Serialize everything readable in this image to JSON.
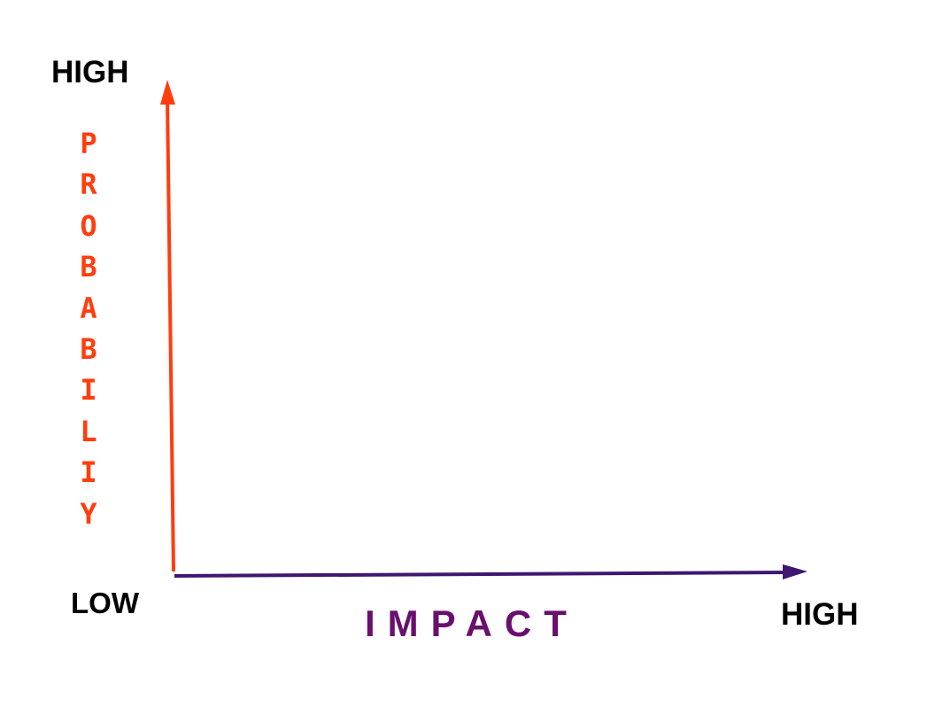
{
  "colors": {
    "probability_axis": "#ff3d0d",
    "impact_axis": "#3f1670",
    "impact_title": "#6a0f6e",
    "text": "#000000",
    "background": "#ffffff"
  },
  "y_axis": {
    "title": "PROBABILIY",
    "high_label": "HIGH"
  },
  "x_axis": {
    "title": "IMPACT",
    "low_label": "LOW",
    "high_label": "HIGH"
  }
}
